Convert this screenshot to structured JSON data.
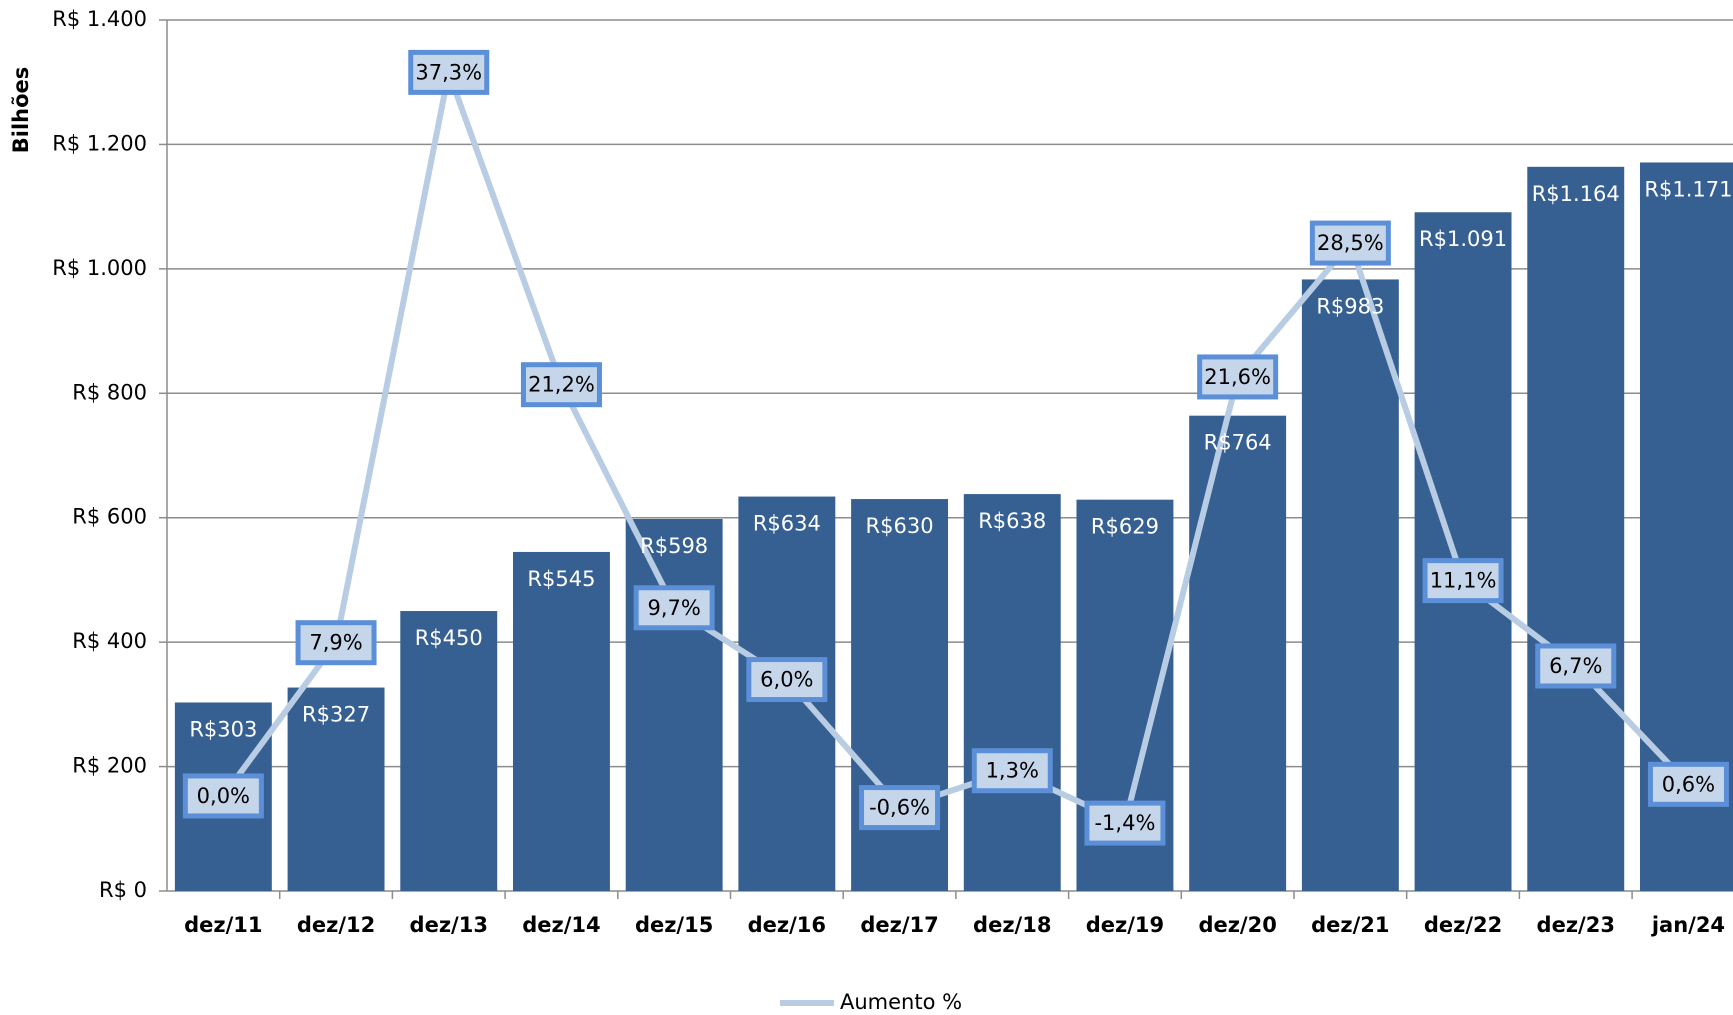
{
  "chart_data": {
    "type": "bar",
    "y_label": "Bilhões",
    "categories": [
      "dez/11",
      "dez/12",
      "dez/13",
      "dez/14",
      "dez/15",
      "dez/16",
      "dez/17",
      "dez/18",
      "dez/19",
      "dez/20",
      "dez/21",
      "dez/22",
      "dez/23",
      "jan/24"
    ],
    "series": [
      {
        "type": "bar",
        "color": "#366092",
        "values": [
          303,
          327,
          450,
          545,
          598,
          634,
          630,
          638,
          629,
          764,
          983,
          1091,
          1164,
          1171
        ],
        "value_labels": [
          "R$303",
          "R$327",
          "R$450",
          "R$545",
          "R$598",
          "R$634",
          "R$630",
          "R$638",
          "R$629",
          "R$764",
          "R$983",
          "R$1.091",
          "R$1.164",
          "R$1.171"
        ]
      },
      {
        "type": "line",
        "name": "Aumento %",
        "color": "#b8cce4",
        "axis": "y2",
        "values": [
          0.0,
          7.9,
          37.3,
          21.2,
          9.7,
          6.0,
          -0.6,
          1.3,
          -1.4,
          21.6,
          28.5,
          11.1,
          6.7,
          0.6
        ],
        "value_labels": [
          "0,0%",
          "7,9%",
          "37,3%",
          "21,2%",
          "9,7%",
          "6,0%",
          "-0,6%",
          "1,3%",
          "-1,4%",
          "21,6%",
          "28,5%",
          "11,1%",
          "6,7%",
          "0,6%"
        ]
      }
    ],
    "ylim": [
      0,
      1400
    ],
    "yticks": [
      {
        "value": 0,
        "label": "R$ 0"
      },
      {
        "value": 200,
        "label": "R$ 200"
      },
      {
        "value": 400,
        "label": "R$ 400"
      },
      {
        "value": 600,
        "label": "R$ 600"
      },
      {
        "value": 800,
        "label": "R$ 800"
      },
      {
        "value": 1000,
        "label": "R$ 1.000"
      },
      {
        "value": 1200,
        "label": "R$ 1.200"
      },
      {
        "value": 1400,
        "label": "R$ 1.400"
      }
    ],
    "y2lim": [
      -4.9,
      40
    ],
    "grid": true
  }
}
